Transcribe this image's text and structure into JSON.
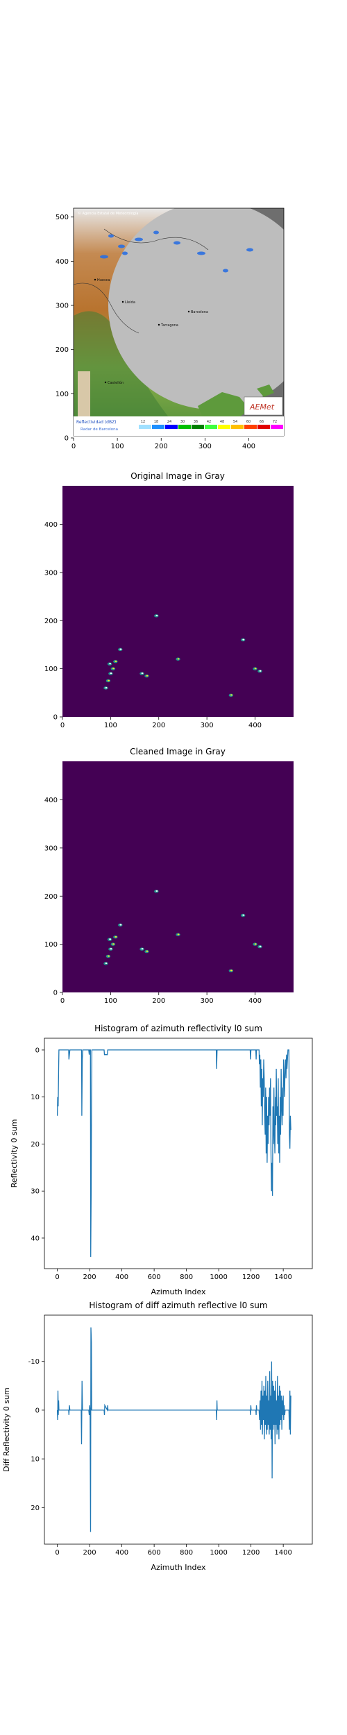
{
  "chart_data": [
    {
      "type": "image",
      "title": "",
      "xlim": [
        0,
        480
      ],
      "ylim": [
        520,
        0
      ],
      "xticks": [
        0,
        100,
        200,
        300,
        400
      ],
      "yticks": [
        0,
        100,
        200,
        300,
        400,
        500
      ],
      "map_text": {
        "header": "© Agencia Estatal de Meteorología",
        "legend_title": "Reflectividad (dBZ)",
        "legend_values": [
          "12",
          "18",
          "24",
          "30",
          "36",
          "42",
          "48",
          "54",
          "60",
          "66",
          "72"
        ],
        "radar_name": "Radar de Barcelona",
        "logo": "AEMet",
        "cities": [
          "Huesca",
          "Lleida",
          "Barcelona",
          "Tarragona",
          "Castellón"
        ]
      },
      "colors": {
        "radar_disk": "#bdbdbd",
        "outside_range": "#6e6e6e",
        "echo": "#2b6fe0"
      }
    },
    {
      "type": "heatmap",
      "title": "Original Image in Gray",
      "xlim": [
        0,
        480
      ],
      "ylim": [
        480,
        0
      ],
      "xticks": [
        0,
        100,
        200,
        300,
        400
      ],
      "yticks": [
        0,
        100,
        200,
        300,
        400
      ],
      "colors": {
        "background": "#440154",
        "high": "#fde725",
        "mid": "#21918c"
      },
      "echo_cells": [
        [
          90,
          60
        ],
        [
          95,
          75
        ],
        [
          100,
          90
        ],
        [
          105,
          100
        ],
        [
          98,
          110
        ],
        [
          110,
          115
        ],
        [
          120,
          140
        ],
        [
          175,
          85
        ],
        [
          165,
          90
        ],
        [
          240,
          120
        ],
        [
          410,
          95
        ],
        [
          400,
          100
        ],
        [
          195,
          210
        ],
        [
          350,
          45
        ],
        [
          375,
          160
        ]
      ]
    },
    {
      "type": "heatmap",
      "title": "Cleaned Image in Gray",
      "xlim": [
        0,
        480
      ],
      "ylim": [
        480,
        0
      ],
      "xticks": [
        0,
        100,
        200,
        300,
        400
      ],
      "yticks": [
        0,
        100,
        200,
        300,
        400
      ],
      "colors": {
        "background": "#440154",
        "high": "#fde725",
        "mid": "#21918c"
      },
      "echo_cells": [
        [
          90,
          60
        ],
        [
          95,
          75
        ],
        [
          100,
          90
        ],
        [
          105,
          100
        ],
        [
          98,
          110
        ],
        [
          110,
          115
        ],
        [
          120,
          140
        ],
        [
          175,
          85
        ],
        [
          165,
          90
        ],
        [
          240,
          120
        ],
        [
          410,
          95
        ],
        [
          400,
          100
        ],
        [
          195,
          210
        ],
        [
          350,
          45
        ],
        [
          375,
          160
        ]
      ]
    },
    {
      "type": "line",
      "title": "Histogram of azimuth reflectivity l0 sum",
      "xlabel": "Azimuth Index",
      "ylabel": "Reflectivity 0 sum",
      "xlim": [
        -80,
        1580
      ],
      "ylim": [
        -2.5,
        46.5
      ],
      "xticks": [
        0,
        200,
        400,
        600,
        800,
        1000,
        1200,
        1400
      ],
      "yticks": [
        0,
        10,
        20,
        30,
        40
      ],
      "color": "#1f77b4",
      "points": [
        [
          0,
          14
        ],
        [
          2,
          10
        ],
        [
          5,
          12
        ],
        [
          8,
          4
        ],
        [
          10,
          0
        ],
        [
          70,
          0
        ],
        [
          72,
          2
        ],
        [
          75,
          1
        ],
        [
          78,
          0
        ],
        [
          150,
          0
        ],
        [
          152,
          14
        ],
        [
          155,
          2
        ],
        [
          158,
          0
        ],
        [
          195,
          0
        ],
        [
          198,
          1
        ],
        [
          200,
          0
        ],
        [
          205,
          0
        ],
        [
          207,
          44
        ],
        [
          210,
          30
        ],
        [
          212,
          10
        ],
        [
          214,
          0
        ],
        [
          290,
          0
        ],
        [
          292,
          1
        ],
        [
          310,
          1
        ],
        [
          312,
          0
        ],
        [
          985,
          0
        ],
        [
          987,
          4
        ],
        [
          990,
          0
        ],
        [
          1195,
          0
        ],
        [
          1197,
          2
        ],
        [
          1200,
          0
        ],
        [
          1230,
          0
        ],
        [
          1232,
          2
        ],
        [
          1234,
          0
        ],
        [
          1250,
          0
        ],
        [
          1252,
          3
        ],
        [
          1255,
          1
        ],
        [
          1258,
          8
        ],
        [
          1261,
          2
        ],
        [
          1264,
          12
        ],
        [
          1267,
          4
        ],
        [
          1270,
          16
        ],
        [
          1273,
          6
        ],
        [
          1276,
          10
        ],
        [
          1279,
          2
        ],
        [
          1282,
          6
        ],
        [
          1285,
          14
        ],
        [
          1288,
          18
        ],
        [
          1291,
          8
        ],
        [
          1294,
          22
        ],
        [
          1297,
          10
        ],
        [
          1300,
          24
        ],
        [
          1303,
          14
        ],
        [
          1306,
          20
        ],
        [
          1309,
          10
        ],
        [
          1312,
          16
        ],
        [
          1315,
          8
        ],
        [
          1318,
          14
        ],
        [
          1321,
          6
        ],
        [
          1324,
          22
        ],
        [
          1327,
          30
        ],
        [
          1330,
          24
        ],
        [
          1333,
          31
        ],
        [
          1336,
          12
        ],
        [
          1339,
          20
        ],
        [
          1342,
          8
        ],
        [
          1345,
          18
        ],
        [
          1348,
          22
        ],
        [
          1351,
          10
        ],
        [
          1354,
          16
        ],
        [
          1357,
          4
        ],
        [
          1360,
          14
        ],
        [
          1363,
          12
        ],
        [
          1366,
          20
        ],
        [
          1369,
          6
        ],
        [
          1372,
          22
        ],
        [
          1375,
          14
        ],
        [
          1378,
          24
        ],
        [
          1381,
          10
        ],
        [
          1384,
          18
        ],
        [
          1387,
          4
        ],
        [
          1390,
          12
        ],
        [
          1393,
          16
        ],
        [
          1396,
          8
        ],
        [
          1399,
          14
        ],
        [
          1402,
          2
        ],
        [
          1405,
          6
        ],
        [
          1408,
          10
        ],
        [
          1411,
          4
        ],
        [
          1414,
          2
        ],
        [
          1417,
          6
        ],
        [
          1420,
          1
        ],
        [
          1423,
          4
        ],
        [
          1426,
          2
        ],
        [
          1429,
          0
        ],
        [
          1435,
          0
        ],
        [
          1438,
          18
        ],
        [
          1441,
          21
        ],
        [
          1444,
          14
        ],
        [
          1447,
          17
        ]
      ]
    },
    {
      "type": "line",
      "title": "Histogram of diff azimuth reflective l0 sum",
      "xlabel": "Azimuth Index",
      "ylabel": "Diff Reflectivity 0 sum",
      "xlim": [
        -80,
        1580
      ],
      "ylim": [
        -19.5,
        27.5
      ],
      "xticks": [
        0,
        200,
        400,
        600,
        800,
        1000,
        1200,
        1400
      ],
      "yticks": [
        -10,
        0,
        10,
        20
      ],
      "color": "#1f77b4",
      "points": [
        [
          0,
          0
        ],
        [
          2,
          2
        ],
        [
          4,
          -4
        ],
        [
          6,
          1
        ],
        [
          8,
          -2
        ],
        [
          10,
          0
        ],
        [
          70,
          0
        ],
        [
          72,
          1
        ],
        [
          75,
          -1
        ],
        [
          78,
          0
        ],
        [
          148,
          0
        ],
        [
          150,
          7
        ],
        [
          153,
          -6
        ],
        [
          156,
          0
        ],
        [
          195,
          0
        ],
        [
          198,
          1
        ],
        [
          200,
          -1
        ],
        [
          203,
          0
        ],
        [
          206,
          25
        ],
        [
          208,
          -17
        ],
        [
          211,
          -14
        ],
        [
          213,
          0
        ],
        [
          290,
          0
        ],
        [
          292,
          1
        ],
        [
          294,
          -1
        ],
        [
          310,
          0
        ],
        [
          312,
          -1
        ],
        [
          314,
          0
        ],
        [
          985,
          0
        ],
        [
          987,
          2
        ],
        [
          989,
          -2
        ],
        [
          991,
          0
        ],
        [
          1195,
          0
        ],
        [
          1197,
          1
        ],
        [
          1199,
          -1
        ],
        [
          1201,
          0
        ],
        [
          1230,
          0
        ],
        [
          1232,
          1
        ],
        [
          1234,
          -1
        ],
        [
          1236,
          0
        ],
        [
          1250,
          0
        ],
        [
          1253,
          2
        ],
        [
          1256,
          -2
        ],
        [
          1259,
          4
        ],
        [
          1262,
          -4
        ],
        [
          1265,
          3
        ],
        [
          1268,
          -6
        ],
        [
          1271,
          5
        ],
        [
          1274,
          -3
        ],
        [
          1277,
          2
        ],
        [
          1280,
          -5
        ],
        [
          1283,
          6
        ],
        [
          1286,
          -4
        ],
        [
          1289,
          3
        ],
        [
          1292,
          -7
        ],
        [
          1295,
          5
        ],
        [
          1298,
          -3
        ],
        [
          1301,
          4
        ],
        [
          1304,
          -6
        ],
        [
          1307,
          3
        ],
        [
          1310,
          -2
        ],
        [
          1313,
          5
        ],
        [
          1316,
          -8
        ],
        [
          1319,
          4
        ],
        [
          1322,
          -3
        ],
        [
          1325,
          6
        ],
        [
          1328,
          -10
        ],
        [
          1331,
          14
        ],
        [
          1334,
          -6
        ],
        [
          1337,
          4
        ],
        [
          1340,
          -5
        ],
        [
          1343,
          3
        ],
        [
          1346,
          -4
        ],
        [
          1349,
          7
        ],
        [
          1352,
          -6
        ],
        [
          1355,
          3
        ],
        [
          1358,
          -2
        ],
        [
          1361,
          5
        ],
        [
          1364,
          -7
        ],
        [
          1367,
          4
        ],
        [
          1370,
          -3
        ],
        [
          1373,
          6
        ],
        [
          1376,
          -5
        ],
        [
          1379,
          3
        ],
        [
          1382,
          -4
        ],
        [
          1385,
          2
        ],
        [
          1388,
          -3
        ],
        [
          1391,
          4
        ],
        [
          1394,
          -2
        ],
        [
          1397,
          1
        ],
        [
          1400,
          -3
        ],
        [
          1403,
          2
        ],
        [
          1406,
          -1
        ],
        [
          1409,
          1
        ],
        [
          1412,
          0
        ],
        [
          1435,
          0
        ],
        [
          1438,
          4
        ],
        [
          1441,
          -4
        ],
        [
          1444,
          5
        ],
        [
          1447,
          -3
        ]
      ]
    }
  ]
}
